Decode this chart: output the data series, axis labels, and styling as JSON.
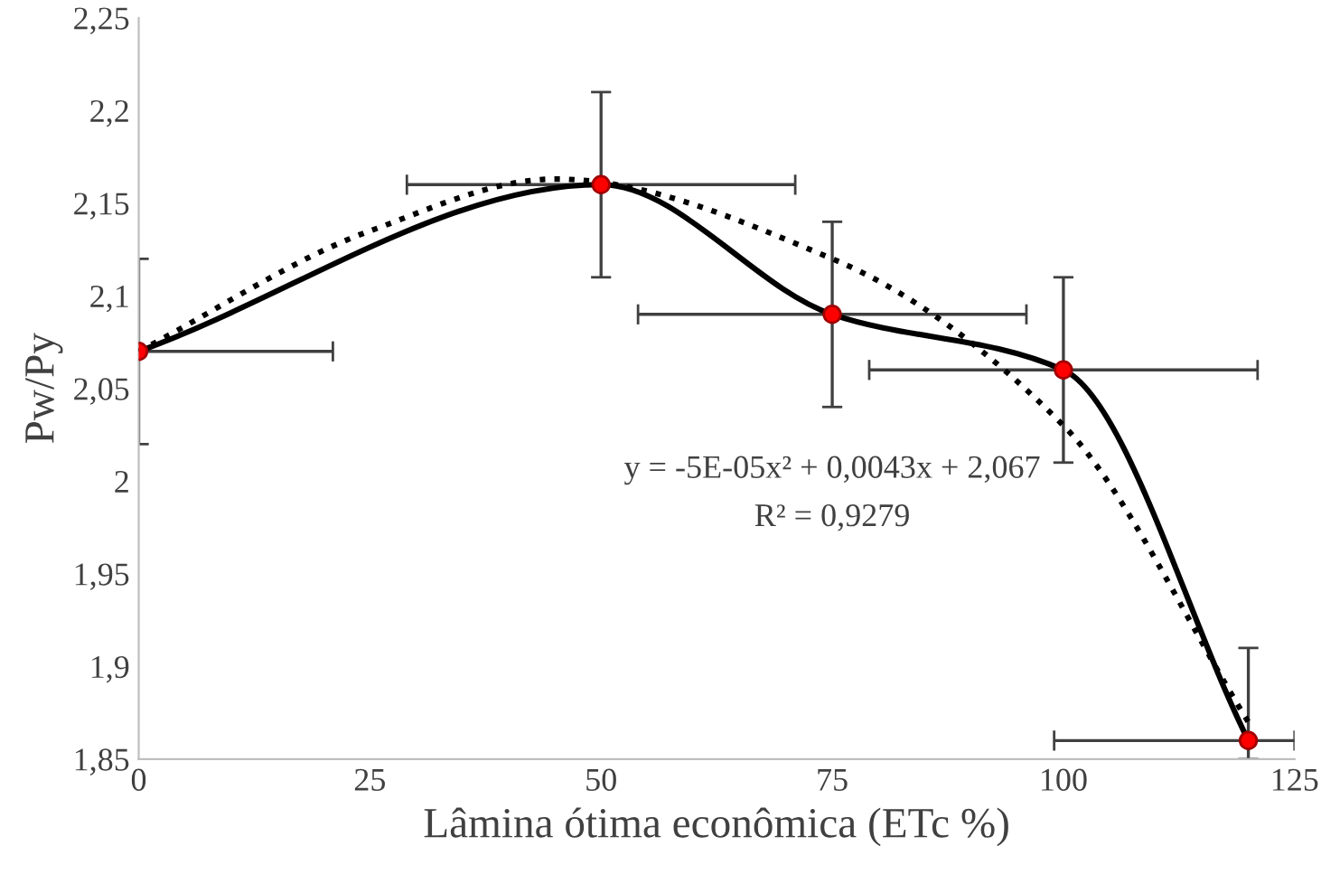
{
  "chart_data": {
    "type": "line",
    "xlabel": "Lâmina ótima econômica (ETc %)",
    "ylabel": "Pw/Py",
    "xlim": [
      0,
      125
    ],
    "xticks": [
      0,
      25,
      50,
      75,
      100,
      125
    ],
    "ylim": [
      1.85,
      2.25
    ],
    "yticks": [
      {
        "value": 1.85,
        "label": "1,85"
      },
      {
        "value": 1.9,
        "label": "1,9"
      },
      {
        "value": 1.95,
        "label": "1,95"
      },
      {
        "value": 2,
        "label": "2"
      },
      {
        "value": 2.05,
        "label": "2,05"
      },
      {
        "value": 2.1,
        "label": "2,1"
      },
      {
        "value": 2.15,
        "label": "2,15"
      },
      {
        "value": 2.2,
        "label": "2,2"
      },
      {
        "value": 2.25,
        "label": "2,25"
      }
    ],
    "grid": false,
    "legend": false,
    "series": [
      {
        "type": "line",
        "color": "#000000",
        "marker": "none",
        "line_style": "dotted",
        "x": [
          0,
          25,
          45,
          75,
          100,
          120
        ],
        "values": [
          2.07,
          2.135,
          2.163,
          2.12,
          2.03,
          1.87
        ]
      },
      {
        "type": "line",
        "color": "#000000",
        "colors": [
          "#ff0000",
          "#ff0000",
          "#ff0000",
          "#ff0000",
          "#ff0000"
        ],
        "marker": "circle",
        "line_style": "solid",
        "x": [
          0,
          50,
          75,
          100,
          120
        ],
        "values": [
          2.07,
          2.16,
          2.09,
          2.06,
          1.86
        ],
        "errors": [
          0.05,
          0.05,
          0.05,
          0.05,
          [
            1.85,
            1.91
          ]
        ],
        "xerrors": [
          [
            0,
            21
          ],
          21,
          21,
          21,
          [
            99,
            125
          ]
        ]
      }
    ],
    "annotations": [
      "y = -5E-05x² + 0,0043x + 2,067",
      "R² = 0,9279"
    ]
  }
}
